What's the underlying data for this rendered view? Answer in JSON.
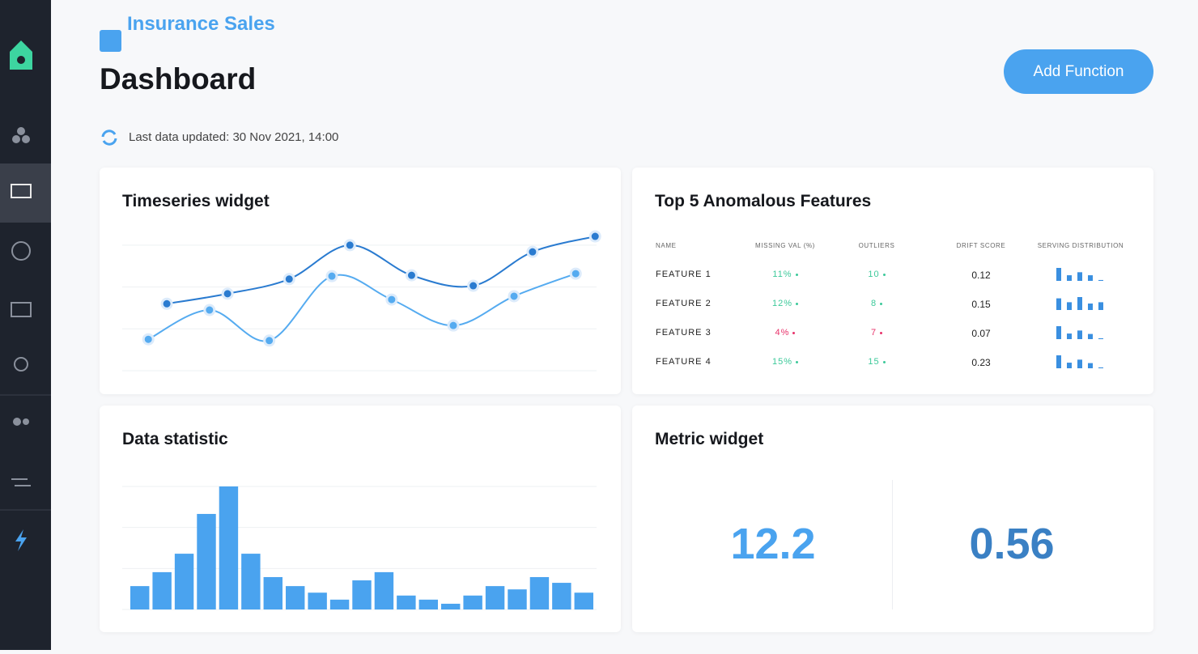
{
  "header": {
    "project": "Insurance Sales",
    "title": "Dashboard",
    "updated": "Last data updated: 30 Nov 2021, 14:00",
    "button": "Add Function"
  },
  "timeseries": {
    "title": "Timeseries widget",
    "chart_data": {
      "type": "line",
      "xlim": [
        0,
        100
      ],
      "ylim": [
        0,
        3.3
      ],
      "yticks": [
        0,
        1,
        2,
        3
      ],
      "grid": true,
      "series": [
        {
          "color": "#2a7bd0",
          "x": [
            9.4,
            22.2,
            35.2,
            48,
            61,
            74,
            86.5,
            99.7
          ],
          "values": [
            1.6,
            1.84,
            2.19,
            3.0,
            2.28,
            2.03,
            2.84,
            3.21
          ]
        },
        {
          "color": "#55abf0",
          "x": [
            5.5,
            18.4,
            31,
            44.2,
            56.8,
            69.8,
            82.6,
            95.6
          ],
          "values": [
            0.75,
            1.45,
            0.72,
            2.26,
            1.7,
            1.08,
            1.78,
            2.32
          ]
        }
      ]
    }
  },
  "anomalous": {
    "title": "Top 5 Anomalous Features",
    "columns": [
      "NAME",
      "MISSING VAL (%)",
      "OUTLIERS",
      "DRIFT SCORE",
      "SERVING DISTRIBUTION"
    ],
    "distribution_lim": [
      0,
      3
    ],
    "rows": [
      {
        "name": "FEATURE 1",
        "missing": "11%",
        "outliers": "10",
        "drift": "0.12",
        "color": "#3cc99a",
        "distribution": [
          3,
          1.3,
          2,
          1.3,
          0.2
        ]
      },
      {
        "name": "FEATURE 2",
        "missing": "12%",
        "outliers": "8",
        "drift": "0.15",
        "color": "#3cc99a",
        "distribution": [
          2.7,
          1.8,
          3,
          1.5,
          1.8
        ]
      },
      {
        "name": "FEATURE 3",
        "missing": "4%",
        "outliers": "7",
        "drift": "0.07",
        "color": "#e8336b",
        "distribution": [
          3,
          1.3,
          2,
          1.2,
          0.2
        ]
      },
      {
        "name": "FEATURE 4",
        "missing": "15%",
        "outliers": "15",
        "drift": "0.23",
        "color": "#3cc99a",
        "distribution": [
          3,
          1.3,
          2,
          1.2,
          0.2
        ]
      }
    ]
  },
  "statistic": {
    "title": "Data statistic",
    "chart_data": {
      "type": "bar",
      "color": "#4aa3ef",
      "ylim": [
        0,
        3
      ],
      "yticks": [
        0,
        1,
        2,
        3
      ],
      "grid": true,
      "values": [
        0.57,
        0.91,
        1.36,
        2.33,
        3.0,
        1.36,
        0.79,
        0.57,
        0.41,
        0.24,
        0.71,
        0.91,
        0.34,
        0.24,
        0.14,
        0.34,
        0.57,
        0.49,
        0.79,
        0.65,
        0.41
      ]
    }
  },
  "metric": {
    "title": "Metric widget",
    "items": [
      {
        "value": "12.2",
        "color": "#4aa3ef"
      },
      {
        "value": "0.56",
        "color": "#3a80c4"
      }
    ]
  }
}
